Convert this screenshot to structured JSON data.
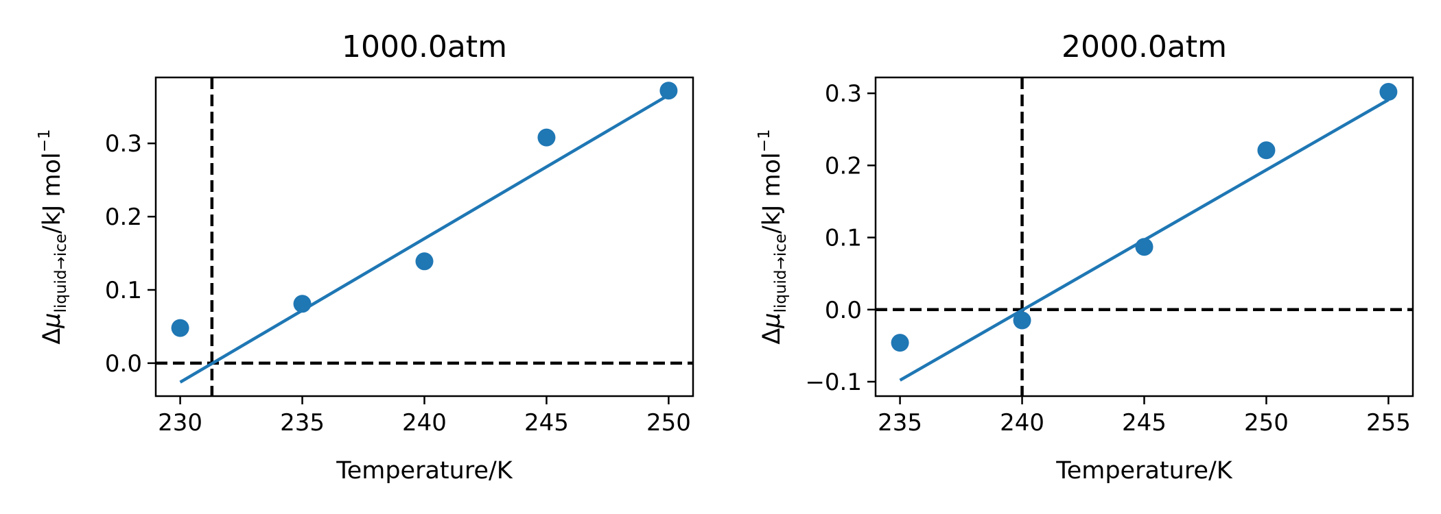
{
  "chart_data": [
    {
      "type": "scatter",
      "title": "1000.0atm",
      "xlabel": "Temperature/K",
      "ylabel": {
        "prefix": "Δ",
        "mu": "μ",
        "subscript": "liquid→ice",
        "unit": "/kJ mol",
        "superscript": "−1"
      },
      "xlim": [
        229,
        251
      ],
      "ylim": [
        -0.045,
        0.39
      ],
      "xticks": [
        "230",
        "235",
        "240",
        "245",
        "250"
      ],
      "xtick_values": [
        230,
        235,
        240,
        245,
        250
      ],
      "yticks": [
        "0.0",
        "0.1",
        "0.2",
        "0.3"
      ],
      "ytick_values": [
        0.0,
        0.1,
        0.2,
        0.3
      ],
      "points": {
        "x": [
          230,
          235,
          240,
          245,
          250
        ],
        "y": [
          0.048,
          0.081,
          0.139,
          0.308,
          0.372
        ]
      },
      "fit_line": {
        "x": [
          230,
          250
        ],
        "y": [
          -0.026,
          0.366
        ]
      },
      "hline": 0.0,
      "vline": 231.3,
      "colors": {
        "marker": "#1f77b4",
        "line": "#1f77b4",
        "guide": "#000000"
      },
      "grid": false
    },
    {
      "type": "scatter",
      "title": "2000.0atm",
      "xlabel": "Temperature/K",
      "ylabel": {
        "prefix": "Δ",
        "mu": "μ",
        "subscript": "liquid→ice",
        "unit": "/kJ mol",
        "superscript": "−1"
      },
      "xlim": [
        234,
        256
      ],
      "ylim": [
        -0.12,
        0.322
      ],
      "xticks": [
        "235",
        "240",
        "245",
        "250",
        "255"
      ],
      "xtick_values": [
        235,
        240,
        245,
        250,
        255
      ],
      "yticks": [
        "−0.1",
        "0.0",
        "0.1",
        "0.2",
        "0.3"
      ],
      "ytick_values": [
        -0.1,
        0.0,
        0.1,
        0.2,
        0.3
      ],
      "points": {
        "x": [
          235,
          240,
          245,
          250,
          255
        ],
        "y": [
          -0.046,
          -0.015,
          0.087,
          0.221,
          0.302
        ]
      },
      "fit_line": {
        "x": [
          235,
          255
        ],
        "y": [
          -0.098,
          0.291
        ]
      },
      "hline": 0.0,
      "vline": 240.0,
      "colors": {
        "marker": "#1f77b4",
        "line": "#1f77b4",
        "guide": "#000000"
      },
      "grid": false
    }
  ]
}
